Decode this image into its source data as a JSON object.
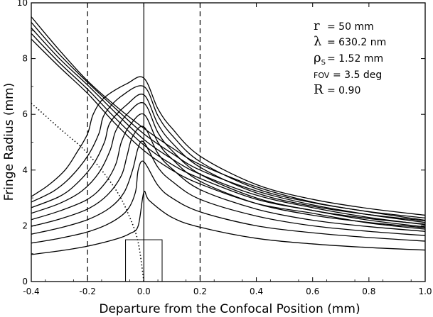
{
  "chart_data": {
    "type": "line",
    "title": "",
    "xlabel": "Departure from the Confocal Position (mm)",
    "ylabel": "Fringe Radius (mm)",
    "xlim": [
      -0.4,
      1.0
    ],
    "ylim": [
      0,
      10
    ],
    "x_ticks": [
      "-0.4",
      "-0.2",
      "0.0",
      "0.2",
      "0.4",
      "0.6",
      "0.8",
      "1.0"
    ],
    "y_ticks": [
      "0",
      "2",
      "4",
      "6",
      "8",
      "10"
    ],
    "grid": false,
    "legend": "none",
    "dashed_vertical_lines": [
      -0.2,
      0.2
    ],
    "solid_vertical_line": 0.0,
    "box": {
      "x": [
        -0.065,
        0.065
      ],
      "y": [
        0,
        1.5
      ]
    },
    "params": [
      {
        "symbol": "r",
        "value": "= 50 mm"
      },
      {
        "symbol": "λ",
        "value": "= 630.2 nm"
      },
      {
        "symbol": "ρ",
        "sub": "S",
        "value": "= 1.52 mm"
      },
      {
        "symbol": "FOV",
        "value": "= 3.5 deg"
      },
      {
        "symbol": "R",
        "value": "= 0.90"
      }
    ],
    "series": [
      {
        "style": "solid",
        "points": [
          [
            -0.4,
            0.97
          ],
          [
            -0.3,
            1.1
          ],
          [
            -0.2,
            1.27
          ],
          [
            -0.1,
            1.52
          ],
          [
            -0.05,
            1.72
          ],
          [
            -0.02,
            2.0
          ],
          [
            0.0,
            3.2
          ],
          [
            0.02,
            2.9
          ],
          [
            0.1,
            2.3
          ],
          [
            0.2,
            1.95
          ],
          [
            0.4,
            1.55
          ],
          [
            0.6,
            1.35
          ],
          [
            0.8,
            1.22
          ],
          [
            1.0,
            1.13
          ]
        ]
      },
      {
        "style": "solid",
        "points": [
          [
            -0.4,
            1.38
          ],
          [
            -0.3,
            1.55
          ],
          [
            -0.2,
            1.78
          ],
          [
            -0.12,
            2.1
          ],
          [
            -0.06,
            2.55
          ],
          [
            -0.03,
            3.2
          ],
          [
            -0.02,
            4.0
          ],
          [
            0.0,
            4.3
          ],
          [
            0.05,
            3.45
          ],
          [
            0.1,
            3.0
          ],
          [
            0.2,
            2.5
          ],
          [
            0.4,
            2.0
          ],
          [
            0.6,
            1.75
          ],
          [
            0.8,
            1.58
          ],
          [
            1.0,
            1.45
          ]
        ]
      },
      {
        "style": "solid",
        "points": [
          [
            -0.4,
            1.7
          ],
          [
            -0.3,
            1.92
          ],
          [
            -0.2,
            2.22
          ],
          [
            -0.12,
            2.65
          ],
          [
            -0.07,
            3.2
          ],
          [
            -0.04,
            4.0
          ],
          [
            -0.02,
            4.8
          ],
          [
            0.0,
            5.0
          ],
          [
            0.05,
            4.1
          ],
          [
            0.1,
            3.6
          ],
          [
            0.2,
            2.95
          ],
          [
            0.4,
            2.35
          ],
          [
            0.6,
            2.0
          ],
          [
            0.8,
            1.8
          ],
          [
            1.0,
            1.65
          ]
        ]
      },
      {
        "style": "solid",
        "points": [
          [
            -0.4,
            1.98
          ],
          [
            -0.3,
            2.24
          ],
          [
            -0.2,
            2.6
          ],
          [
            -0.13,
            3.1
          ],
          [
            -0.08,
            3.8
          ],
          [
            -0.06,
            4.5
          ],
          [
            -0.04,
            5.2
          ],
          [
            0.0,
            5.55
          ],
          [
            0.05,
            4.6
          ],
          [
            0.1,
            4.05
          ],
          [
            0.2,
            3.3
          ],
          [
            0.4,
            2.6
          ],
          [
            0.6,
            2.2
          ],
          [
            0.8,
            1.97
          ],
          [
            1.0,
            1.8
          ]
        ]
      },
      {
        "style": "solid",
        "points": [
          [
            -0.4,
            2.22
          ],
          [
            -0.3,
            2.53
          ],
          [
            -0.2,
            2.95
          ],
          [
            -0.14,
            3.5
          ],
          [
            -0.1,
            4.2
          ],
          [
            -0.08,
            5.0
          ],
          [
            -0.05,
            5.6
          ],
          [
            0.0,
            6.0
          ],
          [
            0.05,
            5.0
          ],
          [
            0.1,
            4.4
          ],
          [
            0.2,
            3.6
          ],
          [
            0.4,
            2.8
          ],
          [
            0.6,
            2.38
          ],
          [
            0.8,
            2.12
          ],
          [
            1.0,
            1.93
          ]
        ]
      },
      {
        "style": "solid",
        "points": [
          [
            -0.4,
            2.45
          ],
          [
            -0.3,
            2.8
          ],
          [
            -0.22,
            3.25
          ],
          [
            -0.16,
            3.9
          ],
          [
            -0.12,
            4.7
          ],
          [
            -0.1,
            5.4
          ],
          [
            -0.06,
            6.0
          ],
          [
            0.0,
            6.4
          ],
          [
            0.05,
            5.35
          ],
          [
            0.1,
            4.7
          ],
          [
            0.2,
            3.85
          ],
          [
            0.4,
            3.0
          ],
          [
            0.6,
            2.55
          ],
          [
            0.8,
            2.26
          ],
          [
            1.0,
            2.06
          ]
        ]
      },
      {
        "style": "solid",
        "points": [
          [
            -0.4,
            2.65
          ],
          [
            -0.3,
            3.05
          ],
          [
            -0.24,
            3.5
          ],
          [
            -0.18,
            4.2
          ],
          [
            -0.14,
            5.0
          ],
          [
            -0.12,
            5.7
          ],
          [
            -0.06,
            6.35
          ],
          [
            0.0,
            6.7
          ],
          [
            0.05,
            5.65
          ],
          [
            0.1,
            4.98
          ],
          [
            0.2,
            4.1
          ],
          [
            0.4,
            3.18
          ],
          [
            0.6,
            2.7
          ],
          [
            0.8,
            2.4
          ],
          [
            1.0,
            2.18
          ]
        ]
      },
      {
        "style": "solid",
        "points": [
          [
            -0.4,
            2.85
          ],
          [
            -0.32,
            3.25
          ],
          [
            -0.26,
            3.75
          ],
          [
            -0.2,
            4.5
          ],
          [
            -0.16,
            5.3
          ],
          [
            -0.14,
            6.0
          ],
          [
            -0.08,
            6.65
          ],
          [
            0.0,
            7.0
          ],
          [
            0.05,
            5.95
          ],
          [
            0.1,
            5.25
          ],
          [
            0.2,
            4.3
          ],
          [
            0.4,
            3.33
          ],
          [
            0.6,
            2.83
          ],
          [
            0.8,
            2.51
          ],
          [
            1.0,
            2.28
          ]
        ]
      },
      {
        "style": "solid",
        "points": [
          [
            -0.4,
            3.05
          ],
          [
            -0.34,
            3.45
          ],
          [
            -0.28,
            4.0
          ],
          [
            -0.24,
            4.6
          ],
          [
            -0.2,
            5.3
          ],
          [
            -0.18,
            6.0
          ],
          [
            -0.14,
            6.6
          ],
          [
            -0.06,
            7.1
          ],
          [
            0.0,
            7.3
          ],
          [
            0.05,
            6.2
          ],
          [
            0.1,
            5.5
          ],
          [
            0.2,
            4.5
          ],
          [
            0.4,
            3.48
          ],
          [
            0.6,
            2.95
          ],
          [
            0.8,
            2.62
          ],
          [
            1.0,
            2.38
          ]
        ]
      },
      {
        "style": "solid",
        "points": [
          [
            -0.4,
            9.5
          ],
          [
            -0.3,
            8.3
          ],
          [
            -0.2,
            7.2
          ],
          [
            -0.1,
            6.3
          ],
          [
            0.0,
            5.5
          ],
          [
            0.1,
            4.8
          ],
          [
            0.2,
            4.2
          ],
          [
            0.4,
            3.4
          ],
          [
            0.6,
            2.85
          ],
          [
            0.8,
            2.5
          ],
          [
            1.0,
            2.2
          ]
        ]
      },
      {
        "style": "solid",
        "points": [
          [
            -0.4,
            9.3
          ],
          [
            -0.3,
            8.15
          ],
          [
            -0.2,
            7.15
          ],
          [
            -0.1,
            6.2
          ],
          [
            0.0,
            5.3
          ],
          [
            0.1,
            4.6
          ],
          [
            0.2,
            4.0
          ],
          [
            0.4,
            3.25
          ],
          [
            0.6,
            2.75
          ],
          [
            0.8,
            2.4
          ],
          [
            1.0,
            2.12
          ]
        ]
      },
      {
        "style": "solid",
        "points": [
          [
            -0.4,
            9.1
          ],
          [
            -0.3,
            8.0
          ],
          [
            -0.2,
            7.05
          ],
          [
            -0.1,
            6.05
          ],
          [
            0.0,
            5.1
          ],
          [
            0.1,
            4.4
          ],
          [
            0.2,
            3.85
          ],
          [
            0.4,
            3.1
          ],
          [
            0.6,
            2.65
          ],
          [
            0.8,
            2.3
          ],
          [
            1.0,
            2.04
          ]
        ]
      },
      {
        "style": "solid",
        "points": [
          [
            -0.4,
            8.9
          ],
          [
            -0.3,
            7.85
          ],
          [
            -0.2,
            6.9
          ],
          [
            -0.1,
            5.85
          ],
          [
            0.0,
            4.9
          ],
          [
            0.1,
            4.2
          ],
          [
            0.2,
            3.7
          ],
          [
            0.4,
            2.95
          ],
          [
            0.6,
            2.55
          ],
          [
            0.8,
            2.2
          ],
          [
            1.0,
            1.96
          ]
        ]
      },
      {
        "style": "solid",
        "points": [
          [
            -0.4,
            8.7
          ],
          [
            -0.3,
            7.7
          ],
          [
            -0.2,
            6.75
          ],
          [
            -0.1,
            5.65
          ],
          [
            0.0,
            4.7
          ],
          [
            0.1,
            4.0
          ],
          [
            0.2,
            3.5
          ],
          [
            0.4,
            2.8
          ],
          [
            0.6,
            2.45
          ],
          [
            0.8,
            2.1
          ],
          [
            1.0,
            1.88
          ]
        ]
      },
      {
        "style": "dotted",
        "points": [
          [
            -0.4,
            6.4
          ],
          [
            -0.3,
            5.5
          ],
          [
            -0.2,
            4.6
          ],
          [
            -0.1,
            3.3
          ],
          [
            -0.05,
            2.3
          ],
          [
            -0.02,
            1.4
          ],
          [
            0.0,
            0.0
          ]
        ]
      }
    ]
  }
}
